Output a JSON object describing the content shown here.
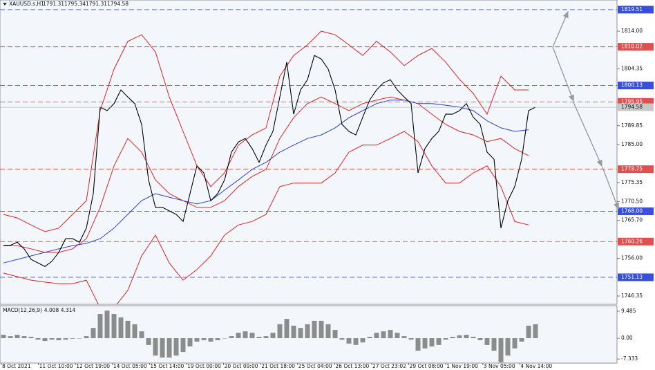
{
  "header": {
    "symbol": "XAUUSD.s,H1",
    "ohlc": [
      1791.31,
      1795.34,
      1791.31,
      1794.58
    ]
  },
  "chart_data": [
    {
      "type": "line",
      "series": [
        {
          "color": "#000000",
          "values": [
            1759.3,
            1759.3,
            1760.1,
            1758.4,
            1755.7,
            1754.8,
            1753.9,
            1755.2,
            1757.5,
            1761.0,
            1761.0,
            1760.1,
            1763.7,
            1772.5,
            1794.6,
            1793.7,
            1795.5,
            1799.0,
            1797.2,
            1795.5,
            1790.2,
            1776.0,
            1769.0,
            1769.0,
            1768.1,
            1767.2,
            1765.4,
            1772.5,
            1779.6,
            1777.8,
            1770.7,
            1772.5,
            1776.0,
            1783.1,
            1785.7,
            1786.6,
            1784.0,
            1780.5,
            1784.9,
            1788.4,
            1797.2,
            1806.1,
            1792.8,
            1799.0,
            1801.6,
            1807.8,
            1806.9,
            1804.3,
            1799.0,
            1790.2,
            1788.4,
            1787.5,
            1792.0,
            1796.4,
            1799.0,
            1800.8,
            1801.6,
            1799.0,
            1797.2,
            1795.5,
            1777.8,
            1784.0,
            1786.6,
            1788.4,
            1792.8,
            1792.8,
            1793.7,
            1795.5,
            1792.0,
            1790.2,
            1783.1,
            1781.3,
            1763.7,
            1770.7,
            1774.3,
            1781.3,
            1793.7,
            1794.58
          ]
        }
      ],
      "indicators": [
        {
          "color": "#e02020",
          "values": [
            1767.2,
            1766.3,
            1764.5,
            1762.8,
            1763.7,
            1767.2,
            1770.7,
            1793.7,
            1804.3,
            1811.4,
            1813.1,
            1808.7,
            1797.2,
            1788.4,
            1779.6,
            1774.3,
            1777.8,
            1784.9,
            1787.5,
            1789.3,
            1802.5,
            1807.8,
            1810.5,
            1814.0,
            1813.1,
            1810.5,
            1807.8,
            1811.4,
            1808.7,
            1805.2,
            1807.8,
            1809.6,
            1806.1,
            1801.7,
            1798.1,
            1792.8,
            1802.5,
            1799.0,
            1799.0
          ]
        },
        {
          "color": "#e02020",
          "values": [
            1759.2,
            1759.2,
            1758.4,
            1757.5,
            1757.5,
            1758.4,
            1761.0,
            1769.0,
            1779.6,
            1786.6,
            1783.1,
            1776.0,
            1772.5,
            1770.7,
            1769.0,
            1769.0,
            1770.7,
            1774.3,
            1776.9,
            1778.7,
            1786.6,
            1791.9,
            1795.5,
            1797.2,
            1795.5,
            1793.7,
            1795.5,
            1796.4,
            1797.2,
            1796.4,
            1795.5,
            1792.8,
            1790.2,
            1788.4,
            1787.5,
            1785.8,
            1786.6,
            1784.0,
            1782.2
          ]
        },
        {
          "color": "#e02020",
          "values": [
            1752.2,
            1751.3,
            1750.4,
            1749.9,
            1749.5,
            1749.5,
            1750.4,
            1743.3,
            1743.3,
            1747.8,
            1756.6,
            1761.9,
            1754.8,
            1750.4,
            1753.1,
            1756.6,
            1761.9,
            1764.5,
            1765.4,
            1767.2,
            1774.3,
            1775.2,
            1775.2,
            1775.2,
            1777.8,
            1783.1,
            1784.9,
            1784.9,
            1786.6,
            1788.4,
            1785.8,
            1779.6,
            1775.2,
            1775.2,
            1777.8,
            1779.6,
            1774.3,
            1765.4,
            1764.5
          ]
        },
        {
          "color": "#2a3fd0",
          "values": [
            1754.8,
            1755.7,
            1756.6,
            1757.5,
            1758.4,
            1759.2,
            1759.8,
            1761.0,
            1763.7,
            1767.2,
            1770.7,
            1772.5,
            1771.6,
            1770.7,
            1769.9,
            1770.7,
            1773.4,
            1776.0,
            1778.7,
            1780.5,
            1783.1,
            1784.9,
            1786.6,
            1787.5,
            1789.3,
            1791.9,
            1793.7,
            1795.5,
            1796.4,
            1796.4,
            1795.5,
            1795.5,
            1795.1,
            1794.6,
            1793.7,
            1791.1,
            1789.3,
            1788.4,
            1788.8
          ]
        }
      ],
      "levels": [
        {
          "value": 1819.51,
          "color": "#3a4fd8"
        },
        {
          "value": 1810.02,
          "color": "#e05050"
        },
        {
          "value": 1800.13,
          "color": "#3a4fd8"
        },
        {
          "value": 1795.95,
          "color": "#e05050"
        },
        {
          "value": 1778.75,
          "color": "#e05050"
        },
        {
          "value": 1768,
          "label": "1768.00",
          "color": "#3a4fd8"
        },
        {
          "value": 1760.26,
          "color": "#e05050"
        },
        {
          "value": 1751.13,
          "color": "#3a4fd8"
        }
      ],
      "last_price": 1794.58,
      "ylim": [
        1744.23,
        1821.97
      ],
      "yticks": [
        {
          "value": 1814,
          "label": "1814.00"
        },
        1804.35,
        1789.85,
        {
          "value": 1785,
          "label": "1785.00"
        },
        1775.35,
        {
          "value": 1770.5,
          "label": "1770.50"
        },
        {
          "value": 1765.7,
          "label": "1765.70"
        },
        {
          "value": 1756,
          "label": "1756.00"
        },
        1746.35
      ],
      "x_labels": [
        "8 Oct 2021",
        "11 Oct 10:00",
        "12 Oct 19:00",
        "14 Oct 05:00",
        "15 Oct 14:00",
        "19 Oct 00:00",
        "20 Oct 09:00",
        "21 Oct 18:00",
        "25 Oct 04:00",
        "26 Oct 13:00",
        "27 Oct 23:02",
        "29 Oct 08:00",
        "1 Nov 19:00",
        "3 Nov 05:00",
        "4 Nov 14:00"
      ]
    },
    {
      "type": "bar",
      "title": "MACD(12,26,9)",
      "readings": [
        4.008,
        4.314
      ],
      "color": "#8c8c8c",
      "values": [
        1.2,
        0.7,
        1.2,
        0.7,
        0.5,
        -0.5,
        -1.0,
        -0.5,
        -0.7,
        -0.5,
        -0.2,
        0,
        0.7,
        3.6,
        8.5,
        9.7,
        8.5,
        7.3,
        6.1,
        4.9,
        2.4,
        -2.4,
        -6.1,
        -6.8,
        -6.8,
        -6.1,
        -4.9,
        -2.9,
        -1.2,
        -0.7,
        -1.2,
        -0.7,
        0,
        0.7,
        1.9,
        2.4,
        1.9,
        0.5,
        0.7,
        1.9,
        4.9,
        6.8,
        4.4,
        3.6,
        4.9,
        6.1,
        6.1,
        4.9,
        2.9,
        -0.5,
        -1.9,
        -2.4,
        -1.5,
        0.5,
        1.9,
        2.4,
        2.9,
        1.9,
        0.7,
        -0.5,
        -4.4,
        -3.6,
        -2.9,
        -2.4,
        -0.5,
        0.5,
        1.0,
        1.2,
        0.5,
        -0.7,
        -2.4,
        -4.4,
        -8.5,
        -6.1,
        -3.6,
        -1.2,
        4.4,
        4.9
      ],
      "ylim": [
        -8.76,
        11.43
      ],
      "yticks": [
        9.485,
        {
          "value": 0,
          "label": "0.00"
        },
        -7.333
      ]
    }
  ]
}
